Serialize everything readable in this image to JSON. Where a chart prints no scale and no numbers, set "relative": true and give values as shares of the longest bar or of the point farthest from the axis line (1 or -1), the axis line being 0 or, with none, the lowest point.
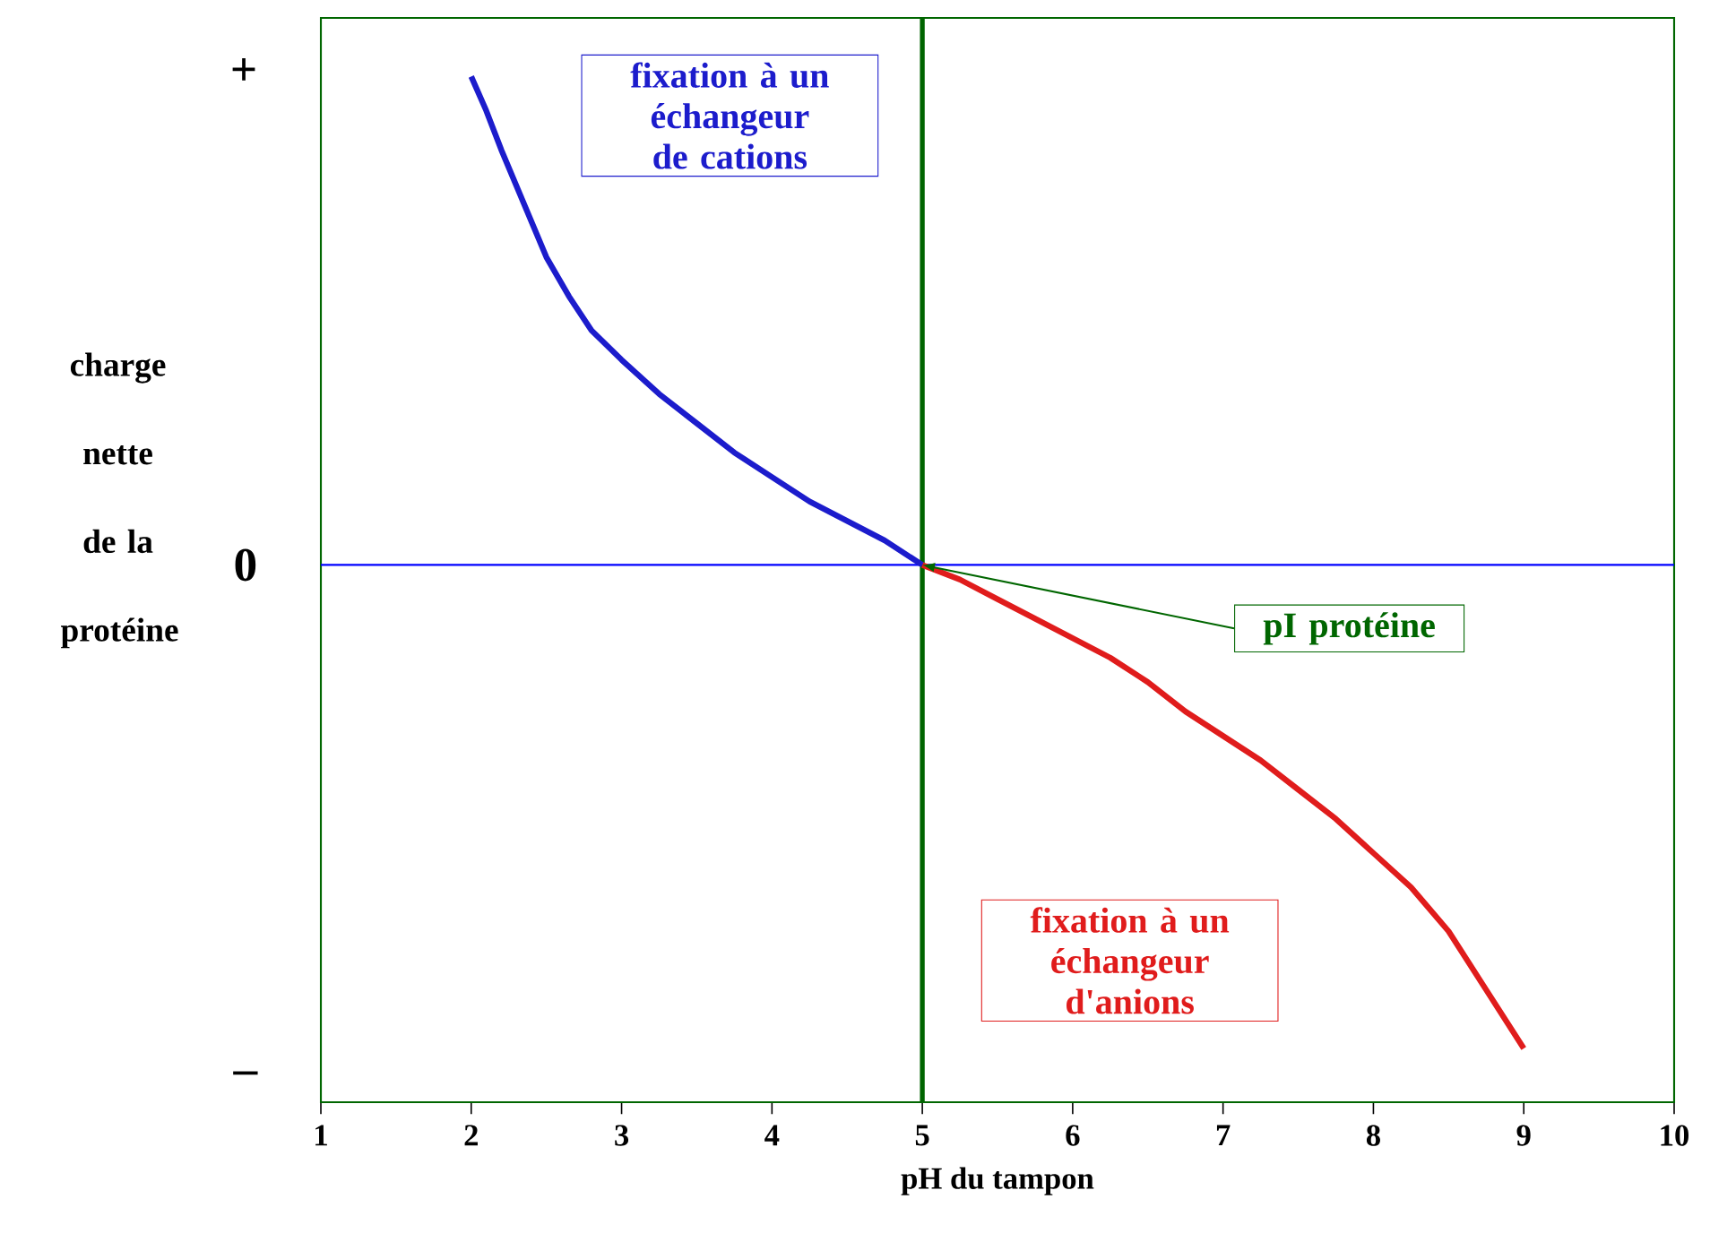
{
  "chart_data": {
    "type": "line",
    "relative": true,
    "xlabel": "pH du tampon",
    "ylabel": "charge nette de la protéine",
    "xlim": [
      1,
      10
    ],
    "xticks": [
      1,
      2,
      3,
      4,
      5,
      6,
      7,
      8,
      9,
      10
    ],
    "series": [
      {
        "color": "#1c1ccc",
        "x": [
          2,
          2.1,
          2.2,
          2.35,
          2.5,
          2.65,
          2.8,
          3,
          3.25,
          3.5,
          3.75,
          4,
          4.25,
          4.5,
          4.75,
          5
        ],
        "values": [
          1,
          0.93,
          0.85,
          0.74,
          0.63,
          0.55,
          0.48,
          0.42,
          0.35,
          0.29,
          0.23,
          0.18,
          0.13,
          0.09,
          0.05,
          0
        ]
      },
      {
        "color": "#e01c1c",
        "x": [
          5,
          5.25,
          5.5,
          5.75,
          6,
          6.25,
          6.5,
          6.75,
          7,
          7.25,
          7.5,
          7.75,
          8,
          8.25,
          8.5,
          8.75,
          9
        ],
        "values": [
          0,
          -0.03,
          -0.07,
          -0.11,
          -0.15,
          -0.19,
          -0.24,
          -0.3,
          -0.35,
          -0.4,
          -0.46,
          -0.52,
          -0.59,
          -0.66,
          -0.75,
          -0.87,
          -0.99
        ]
      }
    ],
    "ref_lines": [
      {
        "axis": "x",
        "value": 5,
        "color": "#006400"
      },
      {
        "axis": "y",
        "value": 0,
        "color": "#0000ff"
      }
    ],
    "annotations": [
      "+",
      "0",
      "–",
      "fixation à un échangeur de cations",
      "fixation à un échangeur d'anions",
      "pI protéine"
    ],
    "grid": false,
    "marker": "none",
    "line_style": "solid"
  }
}
